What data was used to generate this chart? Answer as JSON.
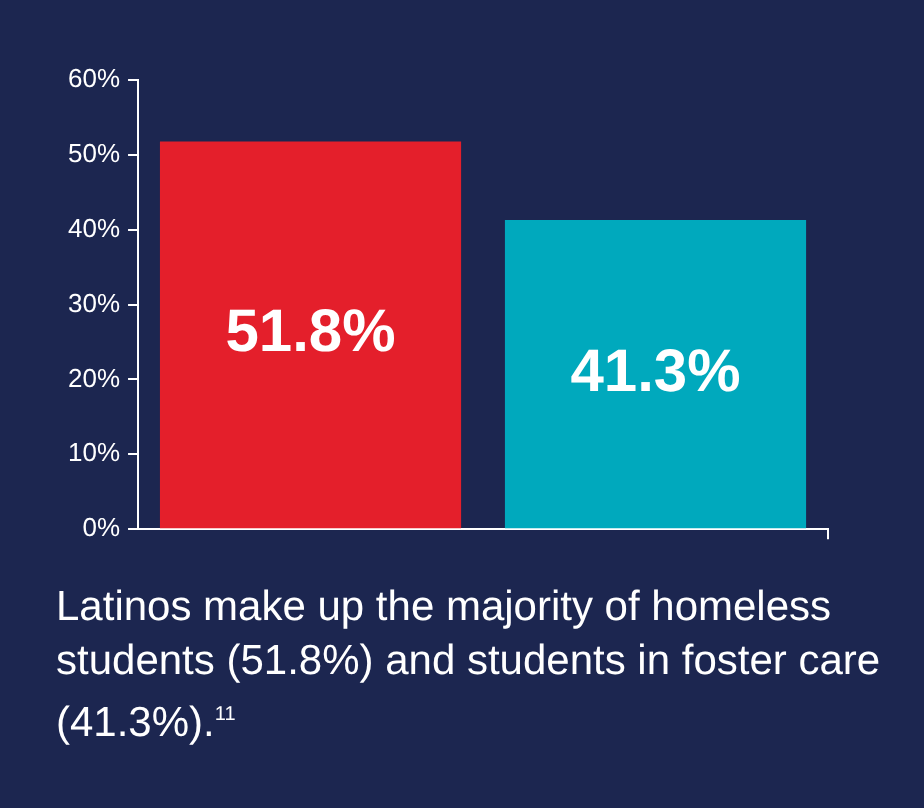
{
  "chart_data": {
    "type": "bar",
    "categories": [
      null,
      null
    ],
    "values": [
      51.8,
      41.3
    ],
    "colors": [
      "#e41f2b",
      "#00a9bd"
    ],
    "value_labels": [
      "51.8%",
      "41.3%"
    ],
    "ylim": [
      0,
      60
    ],
    "yticks": [
      {
        "value": 0,
        "label": "0%"
      },
      {
        "value": 10,
        "label": "10%"
      },
      {
        "value": 20,
        "label": "20%"
      },
      {
        "value": 30,
        "label": "30%"
      },
      {
        "value": 40,
        "label": "40%"
      },
      {
        "value": 50,
        "label": "50%"
      },
      {
        "value": 60,
        "label": "60%"
      }
    ],
    "grid": false,
    "annotations": [
      "Latinos make up the majority of homeless students (51.8%) and students in foster care (41.3%).$^{11}$"
    ]
  }
}
